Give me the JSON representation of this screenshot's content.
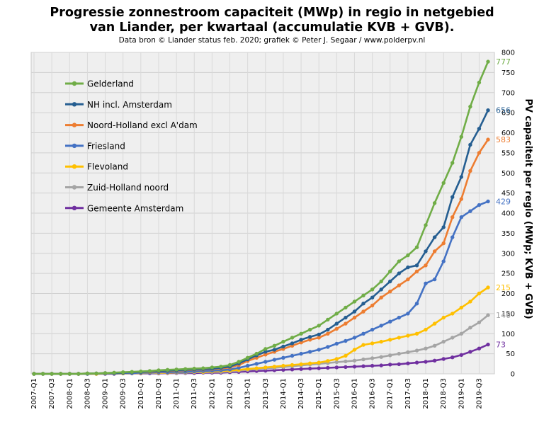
{
  "chart_data": {
    "type": "line",
    "title_line1": "Progressie zonnestroom capaciteit (MWp) in regio in netgebied",
    "title_line2": "van Liander, per kwartaal (accumulatie  KVB + GVB).",
    "subtitle": "Data bron © Liander status feb. 2020; grafiek © Peter J. Segaar / www.polderpv.nl",
    "ylabel": "PV capaciteit per regio (MWp; KVB + GVB)",
    "ylim": [
      0,
      800
    ],
    "yticks": [
      0,
      50,
      100,
      150,
      200,
      250,
      300,
      350,
      400,
      450,
      500,
      550,
      600,
      650,
      700,
      750,
      800
    ],
    "x": [
      "2007-Q1",
      "2007-Q2",
      "2007-Q3",
      "2007-Q4",
      "2008-Q1",
      "2008-Q2",
      "2008-Q3",
      "2008-Q4",
      "2009-Q1",
      "2009-Q2",
      "2009-Q3",
      "2009-Q4",
      "2010-Q1",
      "2010-Q2",
      "2010-Q3",
      "2010-Q4",
      "2011-Q1",
      "2011-Q2",
      "2011-Q3",
      "2011-Q4",
      "2012-Q1",
      "2012-Q2",
      "2012-Q3",
      "2012-Q4",
      "2013-Q1",
      "2013-Q2",
      "2013-Q3",
      "2013-Q4",
      "2014-Q1",
      "2014-Q2",
      "2014-Q3",
      "2014-Q4",
      "2015-Q1",
      "2015-Q2",
      "2015-Q3",
      "2015-Q4",
      "2016-Q1",
      "2016-Q2",
      "2016-Q3",
      "2016-Q4",
      "2017-Q1",
      "2017-Q2",
      "2017-Q3",
      "2017-Q4",
      "2018-Q1",
      "2018-Q2",
      "2018-Q3",
      "2018-Q4",
      "2019-Q1",
      "2019-Q2",
      "2019-Q3",
      "2019-Q4"
    ],
    "xtick_labels": [
      "2007-Q1",
      "2007-Q3",
      "2008-Q1",
      "2008-Q3",
      "2009-Q1",
      "2009-Q3",
      "2010-Q1",
      "2010-Q3",
      "2011-Q1",
      "2011-Q3",
      "2012-Q1",
      "2012-Q3",
      "2013-Q1",
      "2013-Q3",
      "2014-Q1",
      "2014-Q3",
      "2015-Q1",
      "2015-Q3",
      "2016-Q1",
      "2016-Q3",
      "2017-Q1",
      "2017-Q3",
      "2018-Q1",
      "2018-Q3",
      "2019-Q1",
      "2019-Q3"
    ],
    "grid": true,
    "legend_position": "top-left",
    "series": [
      {
        "name": "Gelderland",
        "color": "#70ad47",
        "end_label": "777",
        "values": [
          0,
          0,
          0,
          0,
          0,
          0,
          1,
          1,
          2,
          3,
          4,
          5,
          6,
          7,
          9,
          10,
          11,
          12,
          13,
          14,
          16,
          18,
          22,
          30,
          40,
          50,
          62,
          70,
          80,
          90,
          100,
          110,
          120,
          135,
          150,
          165,
          180,
          195,
          210,
          230,
          255,
          280,
          295,
          315,
          370,
          425,
          475,
          525,
          590,
          665,
          725,
          777
        ]
      },
      {
        "name": "NH incl. Amsterdam",
        "color": "#255e91",
        "end_label": "656",
        "values": [
          0,
          0,
          0,
          0,
          0,
          0,
          1,
          1,
          2,
          2,
          3,
          4,
          5,
          6,
          7,
          8,
          9,
          10,
          11,
          12,
          13,
          15,
          18,
          26,
          36,
          46,
          55,
          60,
          68,
          76,
          85,
          92,
          98,
          110,
          125,
          140,
          155,
          175,
          190,
          210,
          230,
          250,
          265,
          270,
          305,
          340,
          365,
          440,
          490,
          570,
          610,
          656
        ]
      },
      {
        "name": "Noord-Holland excl A'dam",
        "color": "#ed7d31",
        "end_label": "583",
        "values": [
          0,
          0,
          0,
          0,
          0,
          0,
          1,
          1,
          2,
          2,
          3,
          4,
          5,
          5,
          6,
          7,
          8,
          9,
          10,
          11,
          12,
          13,
          16,
          22,
          32,
          40,
          48,
          55,
          62,
          70,
          78,
          85,
          90,
          100,
          112,
          125,
          140,
          155,
          170,
          190,
          205,
          220,
          235,
          255,
          270,
          305,
          325,
          390,
          435,
          505,
          550,
          583
        ]
      },
      {
        "name": "Friesland",
        "color": "#4472c4",
        "end_label": "429",
        "values": [
          0,
          0,
          0,
          0,
          0,
          0,
          0,
          1,
          1,
          1,
          2,
          2,
          3,
          3,
          4,
          4,
          5,
          5,
          6,
          7,
          8,
          9,
          11,
          15,
          20,
          25,
          30,
          35,
          40,
          45,
          50,
          55,
          60,
          67,
          75,
          82,
          90,
          100,
          110,
          120,
          130,
          140,
          150,
          175,
          225,
          235,
          280,
          340,
          390,
          405,
          420,
          429
        ]
      },
      {
        "name": "Flevoland",
        "color": "#ffc000",
        "end_label": "215",
        "values": [
          0,
          0,
          0,
          0,
          0,
          0,
          0,
          0,
          1,
          1,
          1,
          2,
          2,
          3,
          3,
          3,
          4,
          4,
          5,
          5,
          6,
          7,
          8,
          10,
          12,
          14,
          16,
          18,
          20,
          22,
          24,
          26,
          28,
          32,
          37,
          45,
          60,
          72,
          76,
          80,
          85,
          90,
          95,
          100,
          110,
          125,
          140,
          150,
          165,
          180,
          200,
          215
        ]
      },
      {
        "name": "Zuid-Holland noord",
        "color": "#a5a5a5",
        "end_label": "146",
        "values": [
          0,
          0,
          0,
          0,
          0,
          0,
          0,
          0,
          1,
          1,
          1,
          1,
          2,
          2,
          2,
          3,
          3,
          3,
          4,
          4,
          5,
          5,
          6,
          8,
          10,
          12,
          14,
          15,
          17,
          19,
          21,
          23,
          25,
          27,
          29,
          31,
          33,
          36,
          39,
          42,
          46,
          50,
          54,
          58,
          63,
          70,
          80,
          90,
          100,
          115,
          128,
          146
        ]
      },
      {
        "name": "Gemeente Amsterdam",
        "color": "#7030a0",
        "end_label": "73",
        "values": [
          0,
          0,
          0,
          0,
          0,
          0,
          0,
          0,
          0,
          0,
          1,
          1,
          1,
          1,
          1,
          2,
          2,
          2,
          2,
          3,
          3,
          3,
          4,
          5,
          6,
          7,
          8,
          9,
          10,
          11,
          12,
          13,
          14,
          15,
          16,
          17,
          18,
          19,
          20,
          21,
          23,
          24,
          26,
          28,
          30,
          33,
          37,
          41,
          47,
          55,
          63,
          73
        ]
      }
    ]
  }
}
